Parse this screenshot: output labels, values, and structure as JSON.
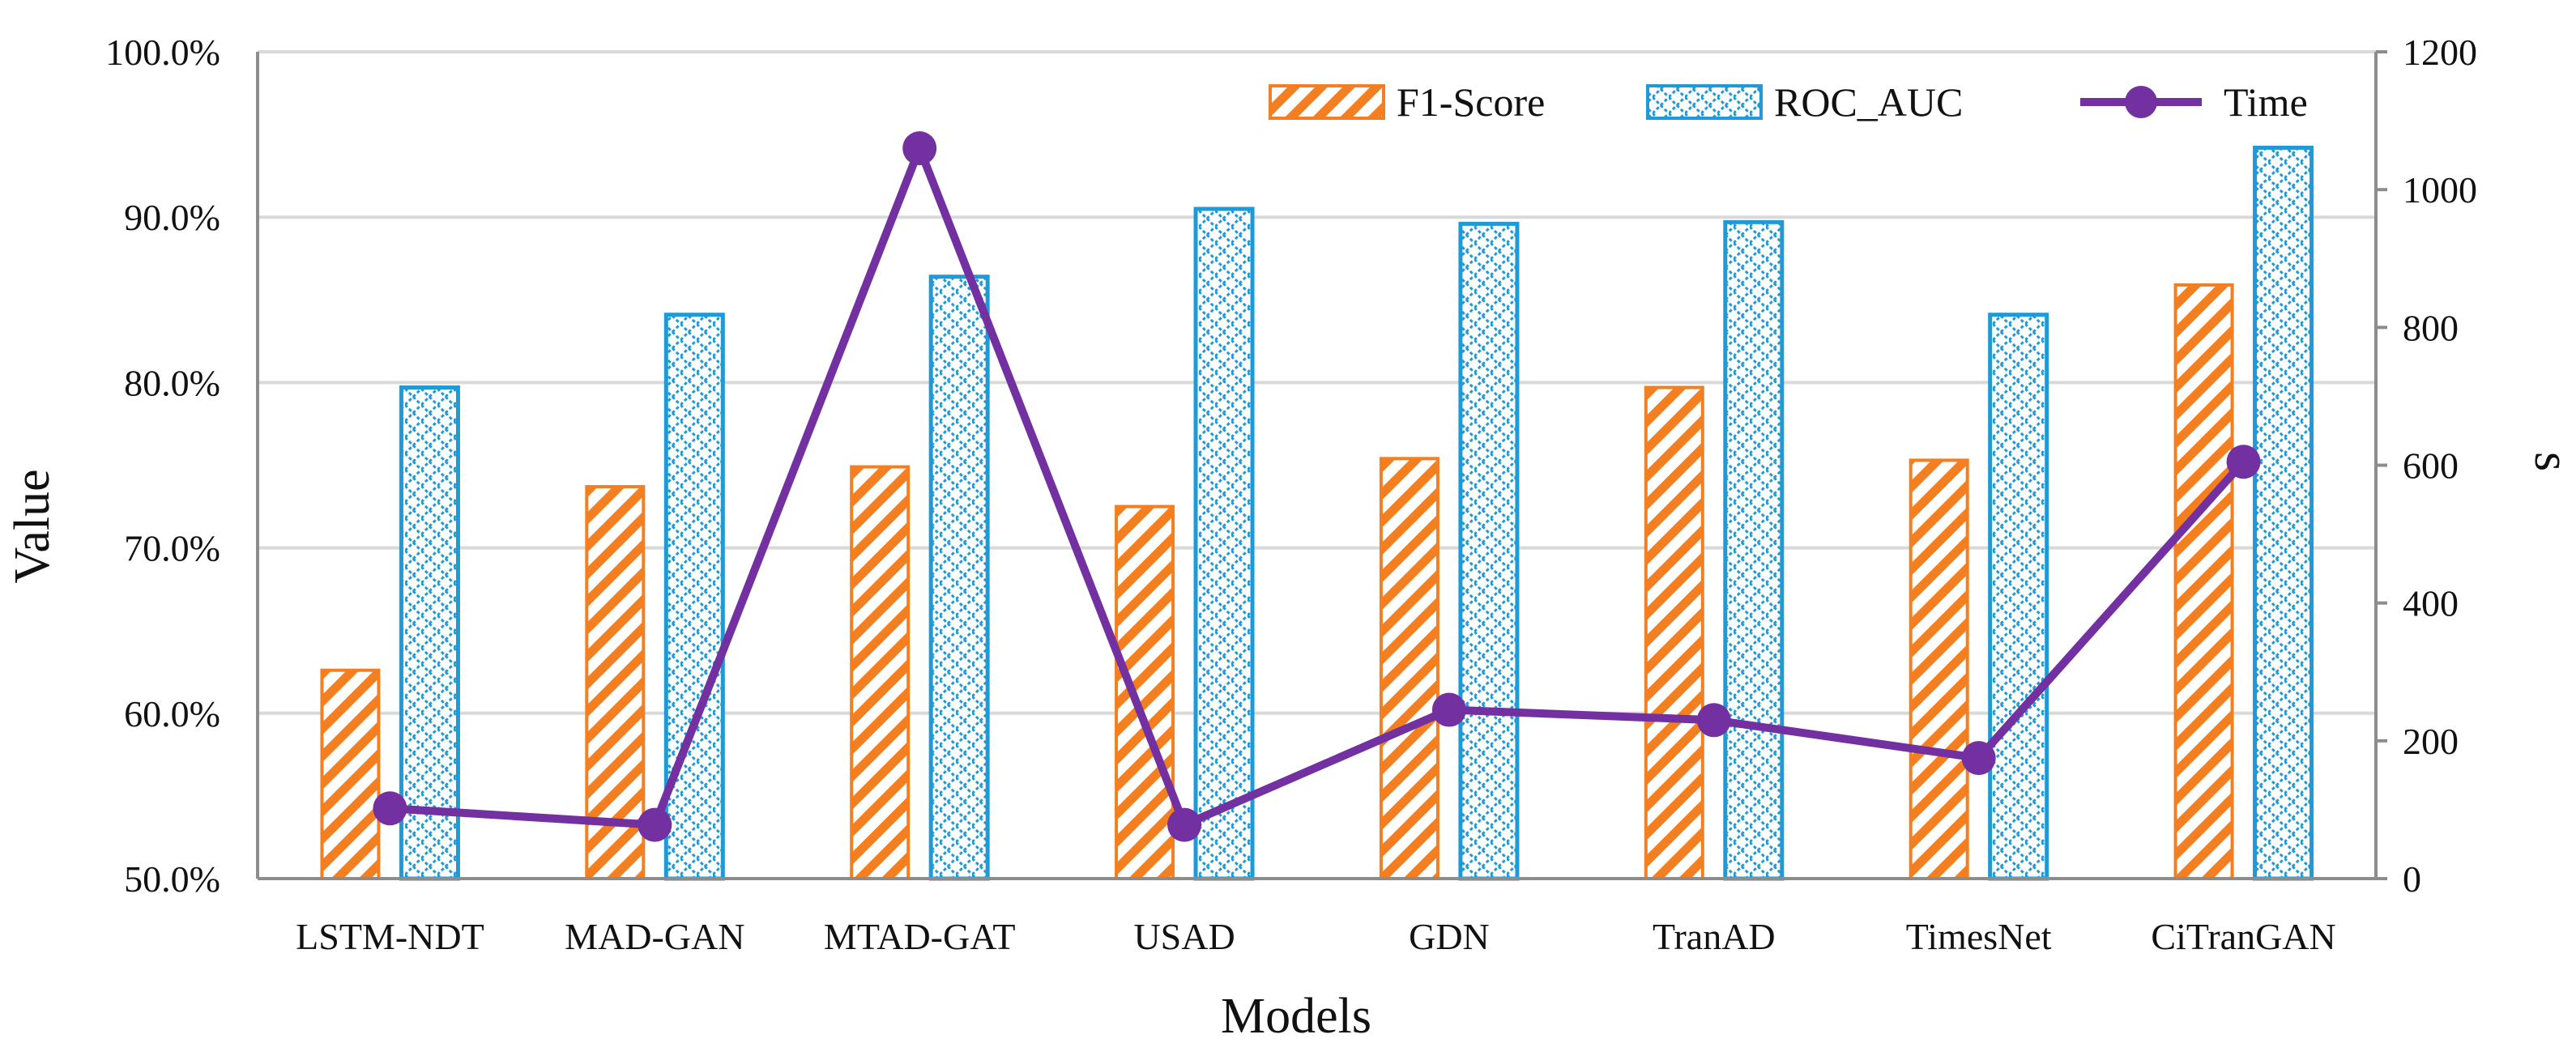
{
  "chart_data": {
    "type": "bar",
    "categories": [
      "LSTM-NDT",
      "MAD-GAN",
      "MTAD-GAT",
      "USAD",
      "GDN",
      "TranAD",
      "TimesNet",
      "CiTranGAN"
    ],
    "series": [
      {
        "name": "F1-Score",
        "kind": "bar",
        "axis": "left",
        "values": [
          62.6,
          73.7,
          74.9,
          72.5,
          75.4,
          79.7,
          75.3,
          85.9
        ]
      },
      {
        "name": "ROC_AUC",
        "kind": "bar",
        "axis": "left",
        "values": [
          79.7,
          84.1,
          86.4,
          90.5,
          89.6,
          89.7,
          84.1,
          94.2
        ]
      },
      {
        "name": "Time",
        "kind": "line",
        "axis": "right",
        "values": [
          102,
          78,
          1060,
          78,
          245,
          230,
          175,
          605
        ]
      }
    ],
    "xlabel": "Models",
    "ylabel": "Value",
    "y2label": "s",
    "ylim": [
      50,
      100
    ],
    "y2lim": [
      0,
      1200
    ],
    "yticks": [
      "50.0%",
      "60.0%",
      "70.0%",
      "80.0%",
      "90.0%",
      "100.0%"
    ],
    "y2ticks": [
      "0",
      "200",
      "400",
      "600",
      "800",
      "1000",
      "1200"
    ],
    "grid": true,
    "legend_position": "top-right",
    "colors": {
      "f1": "#F47F20",
      "roc": "#1F9AD6",
      "time": "#7330A0",
      "grid": "#D9D9D9",
      "axis": "#8C8C8C"
    }
  }
}
